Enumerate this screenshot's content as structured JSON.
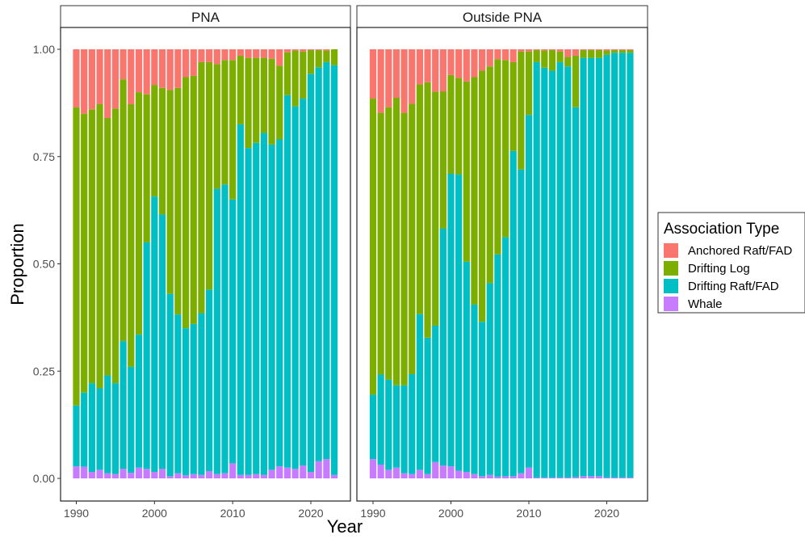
{
  "colors": {
    "Anchored Raft/FAD": "#F8766D",
    "Drifting Log": "#7CAE00",
    "Drifting Raft/FAD": "#00BFC4",
    "Whale": "#C77CFF"
  },
  "chart_data": {
    "type": "bar",
    "stacked": true,
    "xlabel": "Year",
    "ylabel": "Proportion",
    "ylim": [
      0,
      1
    ],
    "y_ticks": [
      "0.00",
      "0.25",
      "0.50",
      "0.75",
      "1.00"
    ],
    "x_ticks": [
      "1990",
      "2000",
      "2010",
      "2020"
    ],
    "x": [
      1990,
      1991,
      1992,
      1993,
      1994,
      1995,
      1996,
      1997,
      1998,
      1999,
      2000,
      2001,
      2002,
      2003,
      2004,
      2005,
      2006,
      2007,
      2008,
      2009,
      2010,
      2011,
      2012,
      2013,
      2014,
      2015,
      2016,
      2017,
      2018,
      2019,
      2020,
      2021,
      2022,
      2023
    ],
    "legend": {
      "title": "Association Type",
      "position": "right",
      "entries": [
        "Anchored Raft/FAD",
        "Drifting Log",
        "Drifting Raft/FAD",
        "Whale"
      ]
    },
    "panels": [
      {
        "title": "PNA",
        "series": [
          {
            "name": "Whale",
            "values": [
              0.028,
              0.027,
              0.015,
              0.02,
              0.012,
              0.01,
              0.022,
              0.013,
              0.025,
              0.022,
              0.015,
              0.022,
              0.005,
              0.012,
              0.007,
              0.01,
              0.008,
              0.017,
              0.01,
              0.012,
              0.035,
              0.008,
              0.008,
              0.01,
              0.008,
              0.02,
              0.028,
              0.025,
              0.022,
              0.03,
              0.015,
              0.04,
              0.045,
              0.008
            ]
          },
          {
            "name": "Drifting Raft/FAD",
            "values": [
              0.142,
              0.173,
              0.207,
              0.19,
              0.228,
              0.212,
              0.298,
              0.247,
              0.31,
              0.528,
              0.642,
              0.593,
              0.425,
              0.37,
              0.343,
              0.35,
              0.377,
              0.423,
              0.665,
              0.673,
              0.615,
              0.817,
              0.762,
              0.772,
              0.797,
              0.758,
              0.762,
              0.868,
              0.845,
              0.855,
              0.928,
              0.918,
              0.925,
              0.955
            ]
          },
          {
            "name": "Drifting Log",
            "values": [
              0.695,
              0.65,
              0.638,
              0.662,
              0.6,
              0.64,
              0.61,
              0.612,
              0.565,
              0.345,
              0.26,
              0.295,
              0.475,
              0.528,
              0.585,
              0.578,
              0.585,
              0.53,
              0.29,
              0.29,
              0.325,
              0.16,
              0.21,
              0.198,
              0.175,
              0.2,
              0.172,
              0.1,
              0.13,
              0.11,
              0.055,
              0.04,
              0.027,
              0.037
            ]
          },
          {
            "name": "Anchored Raft/FAD",
            "values": [
              0.135,
              0.15,
              0.14,
              0.128,
              0.16,
              0.138,
              0.07,
              0.128,
              0.1,
              0.105,
              0.083,
              0.09,
              0.095,
              0.09,
              0.065,
              0.062,
              0.03,
              0.03,
              0.035,
              0.025,
              0.025,
              0.015,
              0.02,
              0.02,
              0.02,
              0.022,
              0.038,
              0.007,
              0.003,
              0.005,
              0.002,
              0.002,
              0.003,
              0.0
            ]
          }
        ]
      },
      {
        "title": "Outside PNA",
        "series": [
          {
            "name": "Whale",
            "values": [
              0.045,
              0.032,
              0.02,
              0.025,
              0.012,
              0.01,
              0.02,
              0.01,
              0.038,
              0.03,
              0.028,
              0.018,
              0.015,
              0.01,
              0.005,
              0.008,
              0.004,
              0.005,
              0.005,
              0.012,
              0.025,
              0.002,
              0.002,
              0.002,
              0.002,
              0.002,
              0.003,
              0.005,
              0.005,
              0.005,
              0.002,
              0.002,
              0.002,
              0.002
            ]
          },
          {
            "name": "Drifting Raft/FAD",
            "values": [
              0.15,
              0.21,
              0.21,
              0.192,
              0.205,
              0.233,
              0.363,
              0.318,
              0.318,
              0.552,
              0.682,
              0.69,
              0.49,
              0.395,
              0.36,
              0.447,
              0.518,
              0.557,
              0.758,
              0.708,
              0.822,
              0.968,
              0.955,
              0.948,
              0.968,
              0.958,
              0.862,
              0.975,
              0.975,
              0.975,
              0.985,
              0.99,
              0.99,
              0.99
            ]
          },
          {
            "name": "Drifting Log",
            "values": [
              0.69,
              0.61,
              0.635,
              0.67,
              0.635,
              0.63,
              0.535,
              0.595,
              0.545,
              0.32,
              0.23,
              0.225,
              0.42,
              0.53,
              0.585,
              0.505,
              0.455,
              0.413,
              0.207,
              0.275,
              0.148,
              0.028,
              0.04,
              0.048,
              0.025,
              0.022,
              0.12,
              0.018,
              0.018,
              0.018,
              0.01,
              0.006,
              0.006,
              0.006
            ]
          },
          {
            "name": "Anchored Raft/FAD",
            "values": [
              0.115,
              0.148,
              0.135,
              0.113,
              0.148,
              0.127,
              0.082,
              0.077,
              0.099,
              0.098,
              0.06,
              0.067,
              0.075,
              0.065,
              0.05,
              0.04,
              0.023,
              0.025,
              0.03,
              0.005,
              0.005,
              0.002,
              0.003,
              0.002,
              0.005,
              0.018,
              0.015,
              0.002,
              0.002,
              0.002,
              0.003,
              0.002,
              0.002,
              0.002
            ]
          }
        ]
      }
    ]
  }
}
